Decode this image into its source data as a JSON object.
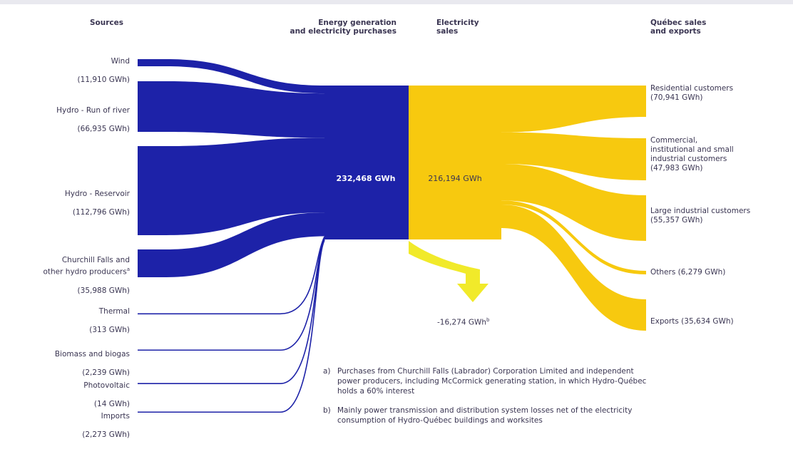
{
  "headers": {
    "sources": "Sources",
    "generation": "Energy generation\nand electricity purchases",
    "sales": "Electricity\nsales",
    "quebec": "Québec sales\nand exports"
  },
  "sources": [
    {
      "name": "Wind",
      "value": "(11,910 GWh)",
      "gwh": 11910
    },
    {
      "name": "Hydro - Run of river",
      "value": "(66,935 GWh)",
      "gwh": 66935
    },
    {
      "name": "Hydro - Reservoir",
      "value": "(112,796 GWh)",
      "gwh": 112796
    },
    {
      "name": "Churchill Falls and\nother hydro producers",
      "note_mark": "a",
      "value": "(35,988 GWh)",
      "gwh": 35988
    },
    {
      "name": "Thermal",
      "value": "(313 GWh)",
      "gwh": 313
    },
    {
      "name": "Biomass and biogas",
      "value": "(2,239 GWh)",
      "gwh": 2239
    },
    {
      "name": "Photovoltaic",
      "value": "(14 GWh)",
      "gwh": 14
    },
    {
      "name": "Imports",
      "value": "(2,273 GWh)",
      "gwh": 2273
    }
  ],
  "generation_total": "232,468 GWh",
  "sales_total": "216,194 GWh",
  "losses": "-16,274 GWh",
  "losses_mark": "b",
  "outputs": [
    {
      "label": "Residential customers\n(70,941 GWh)",
      "gwh": 70941
    },
    {
      "label": "Commercial,\ninstitutional and small\nindustrial customers\n(47,983 GWh)",
      "gwh": 47983
    },
    {
      "label": "Large industrial customers\n(55,357 GWh)",
      "gwh": 55357
    },
    {
      "label": "Others (6,279 GWh)",
      "gwh": 6279
    },
    {
      "label": "Exports (35,634 GWh)",
      "gwh": 35634
    }
  ],
  "notes": [
    {
      "key": "a)",
      "text": "Purchases from Churchill Falls (Labrador) Corporation Limited and independent\npower producers, including McCormick generating station, in which Hydro-Québec\nholds a 60% interest"
    },
    {
      "key": "b)",
      "text": "Mainly power transmission and distribution system losses net of the electricity\nconsumption of Hydro-Québec buildings and worksites"
    }
  ],
  "colors": {
    "blue": "#1d22a8",
    "yellow": "#f7c90f",
    "loss": "#f1ea2a"
  }
}
